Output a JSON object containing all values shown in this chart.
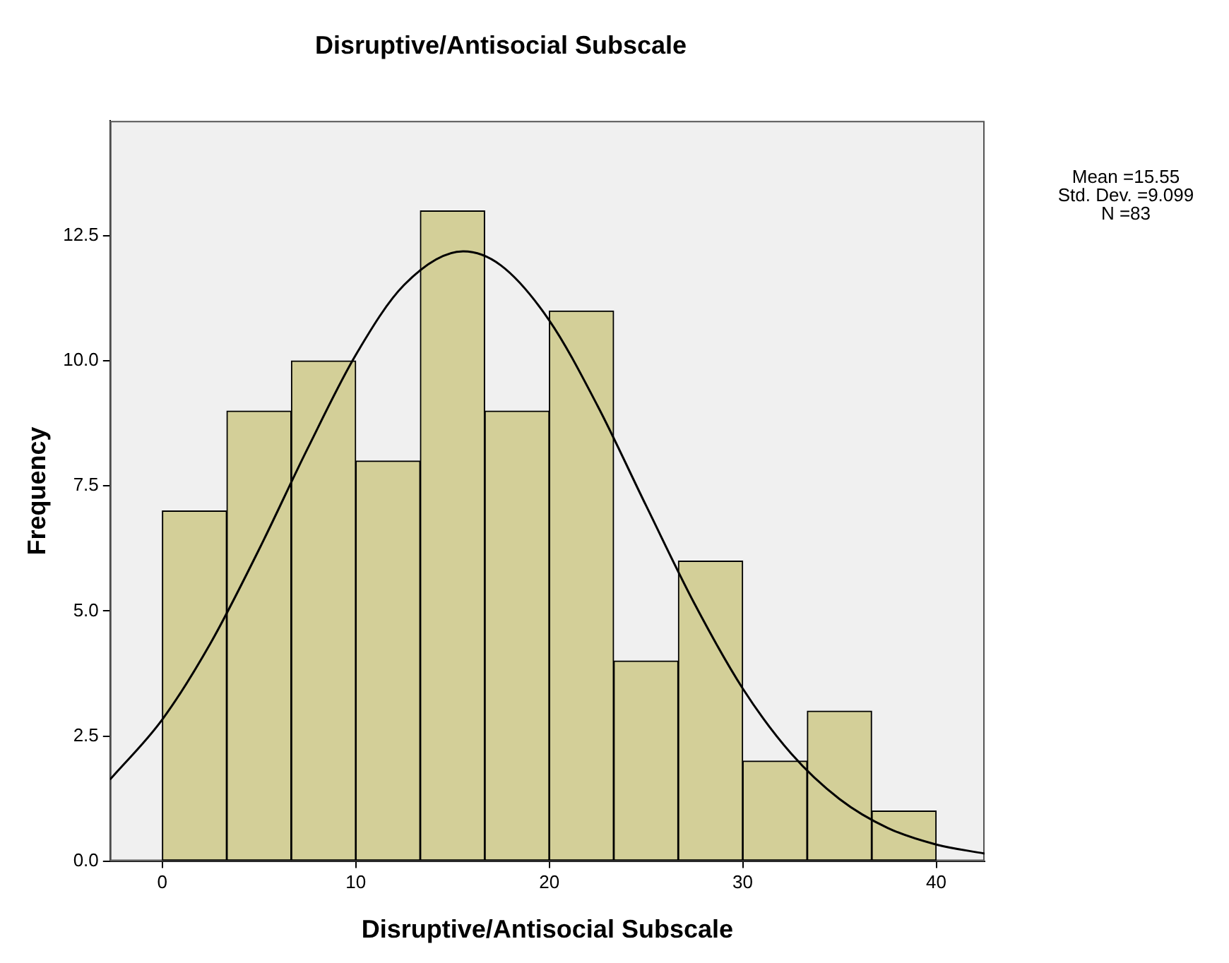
{
  "chart_data": {
    "type": "histogram",
    "title": "Disruptive/Antisocial Subscale",
    "xlabel": "Disruptive/Antisocial Subscale",
    "ylabel": "Frequency",
    "annotations": [
      "Mean =15.55",
      "Std. Dev. =9.099",
      "N =83"
    ],
    "series": [
      {
        "type": "histogram",
        "color": "#d3cf98",
        "bins": [
          0,
          3.33,
          6.67,
          10,
          13.33,
          16.67,
          20,
          23.33,
          26.67,
          30,
          33.33,
          36.67,
          40
        ],
        "values": [
          7,
          9,
          10,
          8,
          13,
          9,
          11,
          4,
          6,
          2,
          3,
          1
        ]
      },
      {
        "type": "line",
        "color": "#000000",
        "x": [
          -2.7,
          0,
          2.5,
          5,
          7.5,
          10,
          12.5,
          15.55,
          17.5,
          20,
          22.5,
          25,
          27.5,
          30,
          32.5,
          35,
          37.5,
          40,
          42.5
        ],
        "values": [
          1.63,
          2.83,
          4.36,
          6.23,
          8.24,
          10.12,
          11.52,
          12.19,
          11.91,
          10.81,
          9.1,
          7.11,
          5.15,
          3.45,
          2.15,
          1.24,
          0.66,
          0.33,
          0.15
        ]
      }
    ],
    "xlim": [
      -2.7,
      42.5
    ],
    "ylim": [
      0,
      14.8
    ],
    "xticks": [
      0,
      10,
      20,
      30,
      40
    ],
    "yticks": [
      {
        "value": 0,
        "label": "0.0"
      },
      {
        "value": 2.5,
        "label": "2.5"
      },
      {
        "value": 5,
        "label": "5.0"
      },
      {
        "value": 7.5,
        "label": "7.5"
      },
      {
        "value": 10,
        "label": "10.0"
      },
      {
        "value": 12.5,
        "label": "12.5"
      }
    ],
    "grid": false,
    "legend": false,
    "marker": "none",
    "line_style": "solid"
  }
}
